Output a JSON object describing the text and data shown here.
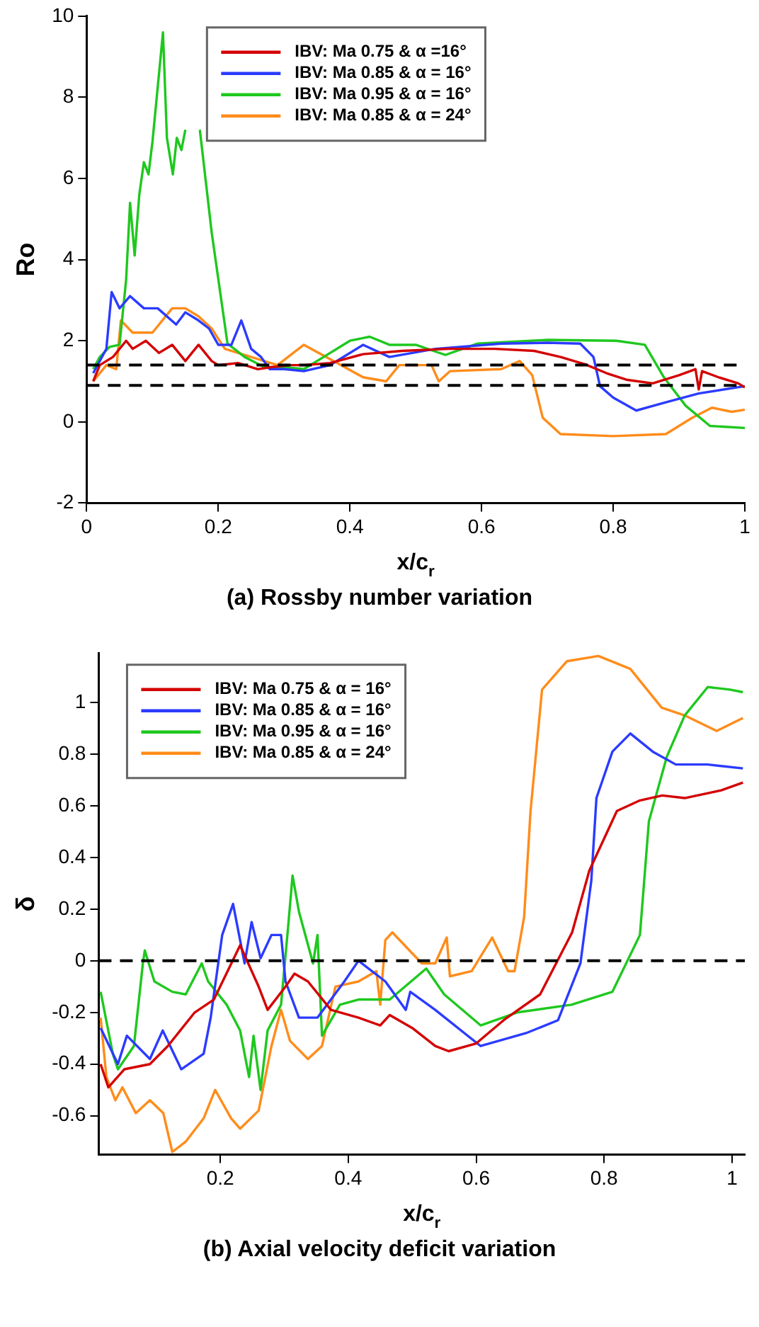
{
  "chart_data": [
    {
      "type": "line",
      "xlabel": "x/c$_{r}$",
      "ylabel": "Ro",
      "annotations": [
        "(a) Rossby number variation"
      ],
      "xlim": [
        0,
        1
      ],
      "xticks": [
        0,
        0.2,
        0.4,
        0.6,
        0.8,
        1
      ],
      "ylim": [
        -2,
        10
      ],
      "yticks": [
        -2,
        0,
        2,
        4,
        6,
        8,
        10
      ],
      "legend": "top left",
      "ref_lines": [
        {
          "axis": "y",
          "value": 1.4,
          "color": "#000000",
          "line_style": "dashed"
        },
        {
          "axis": "y",
          "value": 0.9,
          "color": "#000000",
          "line_style": "dashed"
        }
      ],
      "series": [
        {
          "name": "IBV: Ma 0.75 & α =16°",
          "color": "#d40000",
          "x": [
            0.01,
            0.02,
            0.04,
            0.06,
            0.07,
            0.09,
            0.11,
            0.13,
            0.15,
            0.17,
            0.19,
            0.2,
            0.23,
            0.26,
            0.28,
            0.31,
            0.33,
            0.37,
            0.42,
            0.48,
            0.55,
            0.62,
            0.68,
            0.72,
            0.757,
            0.79,
            0.82,
            0.86,
            0.9,
            0.925,
            0.93,
            0.935,
            0.96,
            0.99,
            1.0
          ],
          "values": [
            1.0,
            1.4,
            1.6,
            2.0,
            1.8,
            2.0,
            1.7,
            1.9,
            1.5,
            1.9,
            1.5,
            1.4,
            1.45,
            1.3,
            1.35,
            1.4,
            1.4,
            1.45,
            1.67,
            1.75,
            1.8,
            1.8,
            1.75,
            1.6,
            1.42,
            1.2,
            1.04,
            0.95,
            1.15,
            1.3,
            0.8,
            1.25,
            1.1,
            0.95,
            0.85
          ]
        },
        {
          "name": "IBV: Ma 0.85 & α = 16°",
          "color": "#2b3bff",
          "x": [
            0.01,
            0.03,
            0.038,
            0.05,
            0.066,
            0.087,
            0.108,
            0.136,
            0.15,
            0.17,
            0.186,
            0.2,
            0.22,
            0.235,
            0.25,
            0.265,
            0.278,
            0.3,
            0.33,
            0.37,
            0.42,
            0.46,
            0.53,
            0.63,
            0.7,
            0.75,
            0.77,
            0.78,
            0.8,
            0.835,
            0.877,
            0.93,
            1.0
          ],
          "values": [
            1.2,
            1.8,
            3.2,
            2.8,
            3.1,
            2.8,
            2.8,
            2.4,
            2.7,
            2.5,
            2.3,
            1.9,
            1.9,
            2.5,
            1.8,
            1.6,
            1.3,
            1.3,
            1.25,
            1.4,
            1.9,
            1.6,
            1.8,
            1.93,
            1.95,
            1.93,
            1.6,
            0.88,
            0.6,
            0.28,
            0.47,
            0.7,
            0.88
          ]
        },
        {
          "name": "IBV: Ma 0.95 & α = 16°",
          "color": "#1ec81e",
          "x": [
            0.01,
            0.02,
            0.035,
            0.05,
            0.06,
            0.066,
            0.073,
            0.08,
            0.087,
            0.094,
            0.1,
            0.116,
            0.122,
            0.131,
            0.137,
            0.144,
            0.15,
            0.16,
            0.172,
            0.19,
            0.214,
            0.24,
            0.27,
            0.3,
            0.33,
            0.36,
            0.4,
            0.43,
            0.46,
            0.5,
            0.545,
            0.594,
            0.7,
            0.805,
            0.848,
            0.877,
            0.91,
            0.947,
            1.0
          ],
          "values": [
            1.3,
            1.6,
            1.85,
            1.9,
            3.5,
            5.4,
            4.1,
            5.6,
            6.4,
            6.1,
            6.9,
            9.6,
            7.0,
            6.1,
            7.0,
            6.7,
            7.2,
            null,
            7.2,
            4.67,
            1.93,
            1.6,
            1.35,
            1.35,
            1.3,
            1.6,
            2.0,
            2.1,
            1.9,
            1.9,
            1.65,
            1.93,
            2.02,
            2.0,
            1.9,
            1.1,
            0.4,
            -0.1,
            -0.15
          ]
        },
        {
          "name": "IBV: Ma 0.85 & α = 24°",
          "color": "#ff8c1a",
          "x": [
            0.01,
            0.03,
            0.045,
            0.052,
            0.07,
            0.1,
            0.13,
            0.15,
            0.17,
            0.19,
            0.21,
            0.25,
            0.29,
            0.33,
            0.375,
            0.42,
            0.455,
            0.475,
            0.524,
            0.535,
            0.552,
            0.63,
            0.658,
            0.677,
            0.693,
            0.72,
            0.8,
            0.88,
            0.92,
            0.95,
            0.98,
            1.0
          ],
          "values": [
            1.0,
            1.4,
            1.3,
            2.5,
            2.2,
            2.2,
            2.8,
            2.8,
            2.6,
            2.3,
            1.8,
            1.6,
            1.4,
            1.9,
            1.5,
            1.1,
            1.0,
            1.4,
            1.4,
            1.0,
            1.25,
            1.3,
            1.5,
            1.15,
            0.1,
            -0.3,
            -0.35,
            -0.3,
            0.1,
            0.35,
            0.25,
            0.3
          ]
        }
      ]
    },
    {
      "type": "line",
      "xlabel": "x/c$_{r}$",
      "ylabel": "δ",
      "annotations": [
        "(b) Axial velocity deficit variation"
      ],
      "xlim": [
        0.01,
        1.02
      ],
      "xticks": [
        0.2,
        0.4,
        0.6,
        0.8,
        1
      ],
      "ylim": [
        -0.75,
        1.19
      ],
      "yticks": [
        -0.6,
        -0.4,
        -0.2,
        0,
        0.2,
        0.4,
        0.6,
        0.8,
        1
      ],
      "legend": "top left",
      "ref_lines": [
        {
          "axis": "y",
          "value": 0,
          "color": "#000000",
          "line_style": "dashed"
        }
      ],
      "series": [
        {
          "name": "IBV: Ma 0.75 & α = 16°",
          "color": "#d40000",
          "x": [
            0.013,
            0.025,
            0.05,
            0.09,
            0.118,
            0.16,
            0.19,
            0.231,
            0.26,
            0.274,
            0.302,
            0.316,
            0.337,
            0.373,
            0.416,
            0.45,
            0.465,
            0.5,
            0.536,
            0.557,
            0.6,
            0.643,
            0.7,
            0.75,
            0.777,
            0.82,
            0.855,
            0.891,
            0.926,
            0.983,
            1.017
          ],
          "values": [
            -0.4,
            -0.49,
            -0.42,
            -0.4,
            -0.33,
            -0.2,
            -0.15,
            0.06,
            -0.1,
            -0.19,
            -0.1,
            -0.05,
            -0.08,
            -0.19,
            -0.22,
            -0.25,
            -0.21,
            -0.26,
            -0.33,
            -0.35,
            -0.32,
            -0.23,
            -0.13,
            0.11,
            0.35,
            0.58,
            0.62,
            0.64,
            0.63,
            0.66,
            0.69
          ]
        },
        {
          "name": "IBV: Ma 0.85 & α = 16°",
          "color": "#2b3bff",
          "x": [
            0.013,
            0.04,
            0.054,
            0.09,
            0.11,
            0.139,
            0.174,
            0.185,
            0.203,
            0.22,
            0.238,
            0.249,
            0.263,
            0.28,
            0.295,
            0.302,
            0.323,
            0.352,
            0.394,
            0.416,
            0.458,
            0.49,
            0.497,
            0.536,
            0.607,
            0.678,
            0.728,
            0.763,
            0.78,
            0.788,
            0.813,
            0.841,
            0.876,
            0.912,
            0.962,
            1.017
          ],
          "values": [
            -0.26,
            -0.4,
            -0.29,
            -0.38,
            -0.27,
            -0.42,
            -0.36,
            -0.22,
            0.1,
            0.22,
            -0.01,
            0.15,
            0.01,
            0.1,
            0.1,
            -0.08,
            -0.22,
            -0.22,
            -0.08,
            0,
            -0.08,
            -0.19,
            -0.12,
            -0.19,
            -0.33,
            -0.28,
            -0.23,
            -0.01,
            0.31,
            0.63,
            0.81,
            0.88,
            0.81,
            0.76,
            0.76,
            0.745
          ]
        },
        {
          "name": "IBV: Ma 0.95 & α = 16°",
          "color": "#1ec81e",
          "x": [
            0.013,
            0.032,
            0.04,
            0.065,
            0.079,
            0.082,
            0.097,
            0.125,
            0.146,
            0.171,
            0.181,
            0.21,
            0.231,
            0.245,
            0.252,
            0.263,
            0.274,
            0.295,
            0.306,
            0.313,
            0.323,
            0.345,
            0.352,
            0.359,
            0.387,
            0.416,
            0.465,
            0.522,
            0.55,
            0.607,
            0.664,
            0.749,
            0.813,
            0.856,
            0.87,
            0.898,
            0.926,
            0.962,
            0.997,
            1.017
          ],
          "values": [
            -0.12,
            -0.36,
            -0.42,
            -0.33,
            -0.01,
            0.04,
            -0.08,
            -0.12,
            -0.13,
            -0.01,
            -0.08,
            -0.17,
            -0.27,
            -0.45,
            -0.29,
            -0.5,
            -0.27,
            -0.17,
            0.13,
            0.33,
            0.19,
            -0.01,
            0.1,
            -0.29,
            -0.17,
            -0.15,
            -0.15,
            -0.03,
            -0.13,
            -0.25,
            -0.2,
            -0.17,
            -0.12,
            0.1,
            0.54,
            0.79,
            0.95,
            1.06,
            1.05,
            1.04
          ]
        },
        {
          "name": "IBV: Ma 0.85 & α = 24°",
          "color": "#ff8c1a",
          "x": [
            0.013,
            0.022,
            0.036,
            0.047,
            0.068,
            0.09,
            0.111,
            0.125,
            0.146,
            0.174,
            0.192,
            0.217,
            0.231,
            0.26,
            0.28,
            0.295,
            0.309,
            0.337,
            0.359,
            0.38,
            0.416,
            0.444,
            0.45,
            0.458,
            0.469,
            0.515,
            0.536,
            0.554,
            0.559,
            0.593,
            0.625,
            0.65,
            0.66,
            0.675,
            0.685,
            0.703,
            0.742,
            0.791,
            0.841,
            0.89,
            0.926,
            0.976,
            1.017
          ],
          "values": [
            -0.22,
            -0.45,
            -0.54,
            -0.49,
            -0.59,
            -0.54,
            -0.59,
            -0.74,
            -0.7,
            -0.61,
            -0.5,
            -0.61,
            -0.65,
            -0.58,
            -0.33,
            -0.19,
            -0.31,
            -0.38,
            -0.33,
            -0.1,
            -0.08,
            -0.04,
            -0.17,
            0.08,
            0.11,
            -0.01,
            -0.01,
            0.09,
            -0.06,
            -0.04,
            0.09,
            -0.04,
            -0.04,
            0.17,
            0.58,
            1.05,
            1.16,
            1.18,
            1.13,
            0.98,
            0.95,
            0.89,
            0.94
          ]
        }
      ]
    }
  ]
}
